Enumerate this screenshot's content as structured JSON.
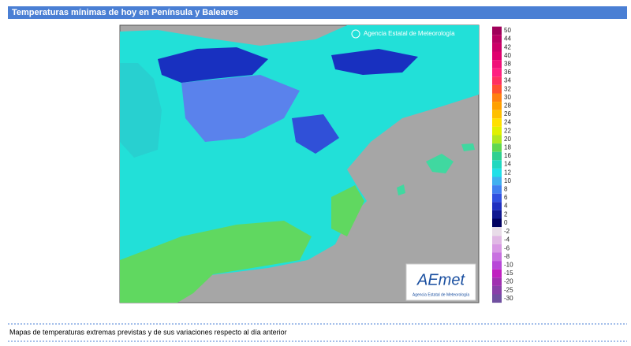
{
  "header": {
    "title": "Temperaturas mínimas de hoy en Península y Baleares"
  },
  "map": {
    "attribution": "Agencia Estatal de Meteorología",
    "logo": {
      "name": "AEmet",
      "caption": "Agencia Estatal de Meteorología"
    }
  },
  "legend": {
    "positive": [
      {
        "label": "50",
        "color": "#a0005a"
      },
      {
        "label": "44",
        "color": "#b80062"
      },
      {
        "label": "42",
        "color": "#cc0068"
      },
      {
        "label": "40",
        "color": "#e0006e"
      },
      {
        "label": "38",
        "color": "#f01078"
      },
      {
        "label": "36",
        "color": "#ff2080"
      },
      {
        "label": "34",
        "color": "#ff3060"
      },
      {
        "label": "32",
        "color": "#ff5030"
      },
      {
        "label": "30",
        "color": "#ff8010"
      },
      {
        "label": "28",
        "color": "#ffa000"
      },
      {
        "label": "26",
        "color": "#ffc000"
      },
      {
        "label": "24",
        "color": "#ffe000"
      },
      {
        "label": "22",
        "color": "#e0f000"
      },
      {
        "label": "20",
        "color": "#b0e820"
      },
      {
        "label": "18",
        "color": "#60d850"
      },
      {
        "label": "16",
        "color": "#30d090"
      },
      {
        "label": "14",
        "color": "#20d8c0"
      },
      {
        "label": "12",
        "color": "#20e0e8"
      },
      {
        "label": "10",
        "color": "#40b0f0"
      },
      {
        "label": "8",
        "color": "#4080f0"
      },
      {
        "label": "6",
        "color": "#3050e0"
      },
      {
        "label": "4",
        "color": "#2030c0"
      },
      {
        "label": "2",
        "color": "#101890"
      },
      {
        "label": "0",
        "color": "#000060"
      }
    ],
    "negative": [
      {
        "label": "-2",
        "color": "#e8dce8"
      },
      {
        "label": "-4",
        "color": "#e0b8e4"
      },
      {
        "label": "-6",
        "color": "#d898e4"
      },
      {
        "label": "-8",
        "color": "#c870e0"
      },
      {
        "label": "-10",
        "color": "#b848d8"
      },
      {
        "label": "-15",
        "color": "#c020c0"
      },
      {
        "label": "-20",
        "color": "#a030b0"
      },
      {
        "label": "-25",
        "color": "#8840a8"
      },
      {
        "label": "-30",
        "color": "#7050a0"
      }
    ]
  },
  "footer": {
    "text": "Mapas de temperaturas extremas previstas y de sus variaciones respecto al día anterior"
  }
}
